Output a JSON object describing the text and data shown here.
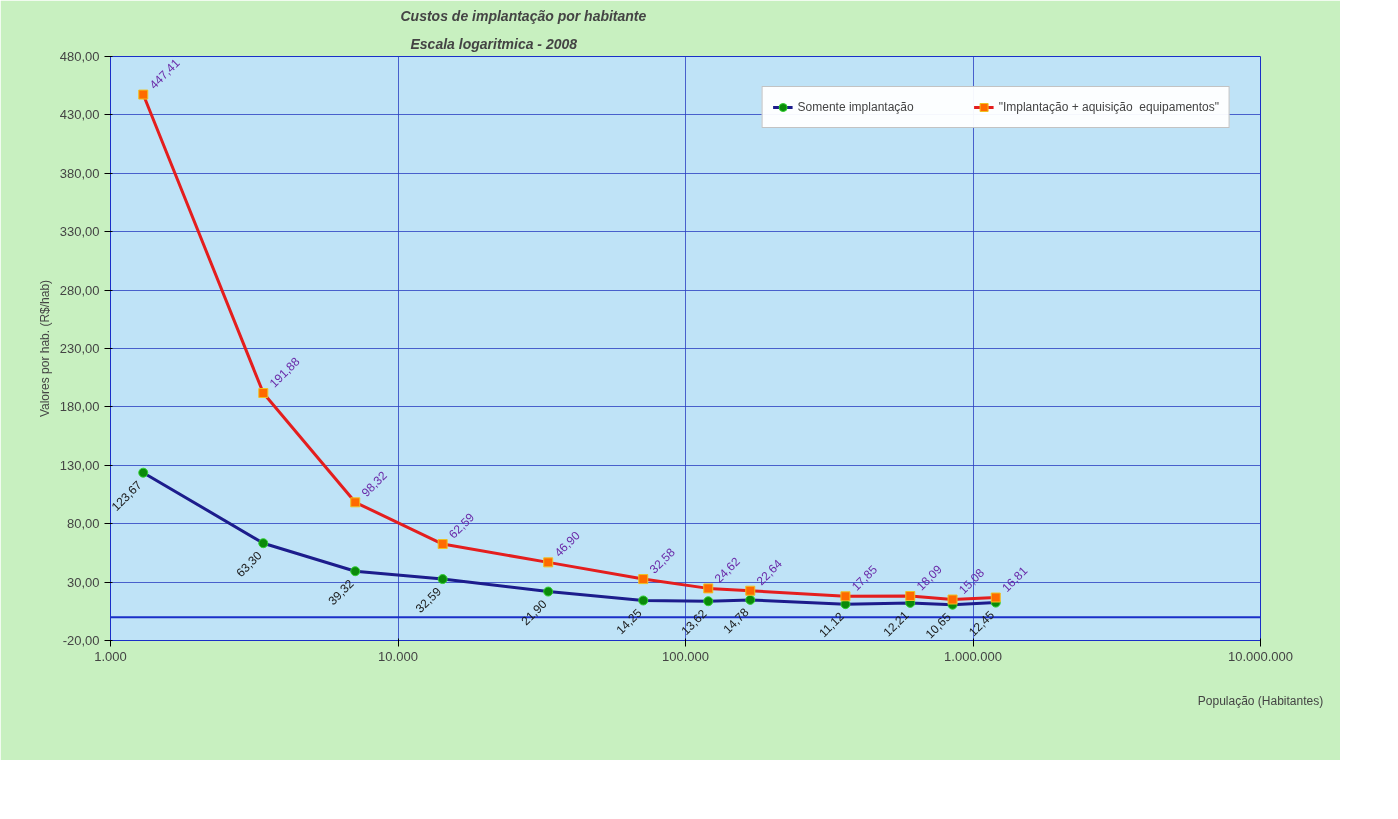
{
  "chart_data": {
    "type": "line",
    "title": "Custos de implantação por habitante",
    "subtitle": "Escala logaritmica - 2008",
    "xlabel": "População (Habitantes)",
    "ylabel": "Valores por hab. (R$/hab)",
    "x": [
      1300,
      3400,
      7100,
      14300,
      33300,
      71300,
      120000,
      168000,
      360000,
      605000,
      849000,
      1200000
    ],
    "series": [
      {
        "name": "Somente implantação",
        "color": "#1c1c8c",
        "marker": "circle",
        "values": [
          123.67,
          63.3,
          39.32,
          32.59,
          21.9,
          14.25,
          13.62,
          14.78,
          11.12,
          12.21,
          10.65,
          12.45
        ],
        "value_labels": [
          "123,67",
          "63,30",
          "39,32",
          "32,59",
          "21,90",
          "14,25",
          "13,62",
          "14,78",
          "11,12",
          "12,21",
          "10,65",
          "12,45"
        ]
      },
      {
        "name": "\"Implantação + aquisição  equipamentos\"",
        "color": "#e41e1e",
        "marker": "square",
        "values": [
          447.41,
          191.88,
          98.32,
          62.59,
          46.9,
          32.58,
          24.62,
          22.64,
          17.85,
          18.09,
          15.08,
          16.81
        ],
        "value_labels": [
          "447,41",
          "191,88",
          "98,32",
          "62,59",
          "46,90",
          "32,58",
          "24,62",
          "22,64",
          "17,85",
          "18,09",
          "15,08",
          "16,81"
        ]
      }
    ],
    "log": "x",
    "xlim": [
      1000,
      10000000
    ],
    "xticks": [
      {
        "value": 1000,
        "label": "1.000"
      },
      {
        "value": 10000,
        "label": "10.000"
      },
      {
        "value": 100000,
        "label": "100.000"
      },
      {
        "value": 1000000,
        "label": "1.000.000"
      },
      {
        "value": 10000000,
        "label": "10.000.000"
      }
    ],
    "ylim": [
      -20,
      480
    ],
    "yticks": [
      {
        "value": -20,
        "label": "-20,00"
      },
      {
        "value": 30,
        "label": "30,00"
      },
      {
        "value": 80,
        "label": "80,00"
      },
      {
        "value": 130,
        "label": "130,00"
      },
      {
        "value": 180,
        "label": "180,00"
      },
      {
        "value": 230,
        "label": "230,00"
      },
      {
        "value": 280,
        "label": "280,00"
      },
      {
        "value": 330,
        "label": "330,00"
      },
      {
        "value": 380,
        "label": "380,00"
      },
      {
        "value": 430,
        "label": "430,00"
      },
      {
        "value": 480,
        "label": "480,00"
      }
    ],
    "ref_lines": [
      {
        "axis": "y",
        "value": 0,
        "color": "#1a2fc8"
      }
    ],
    "grid": true,
    "legend": "top right"
  }
}
